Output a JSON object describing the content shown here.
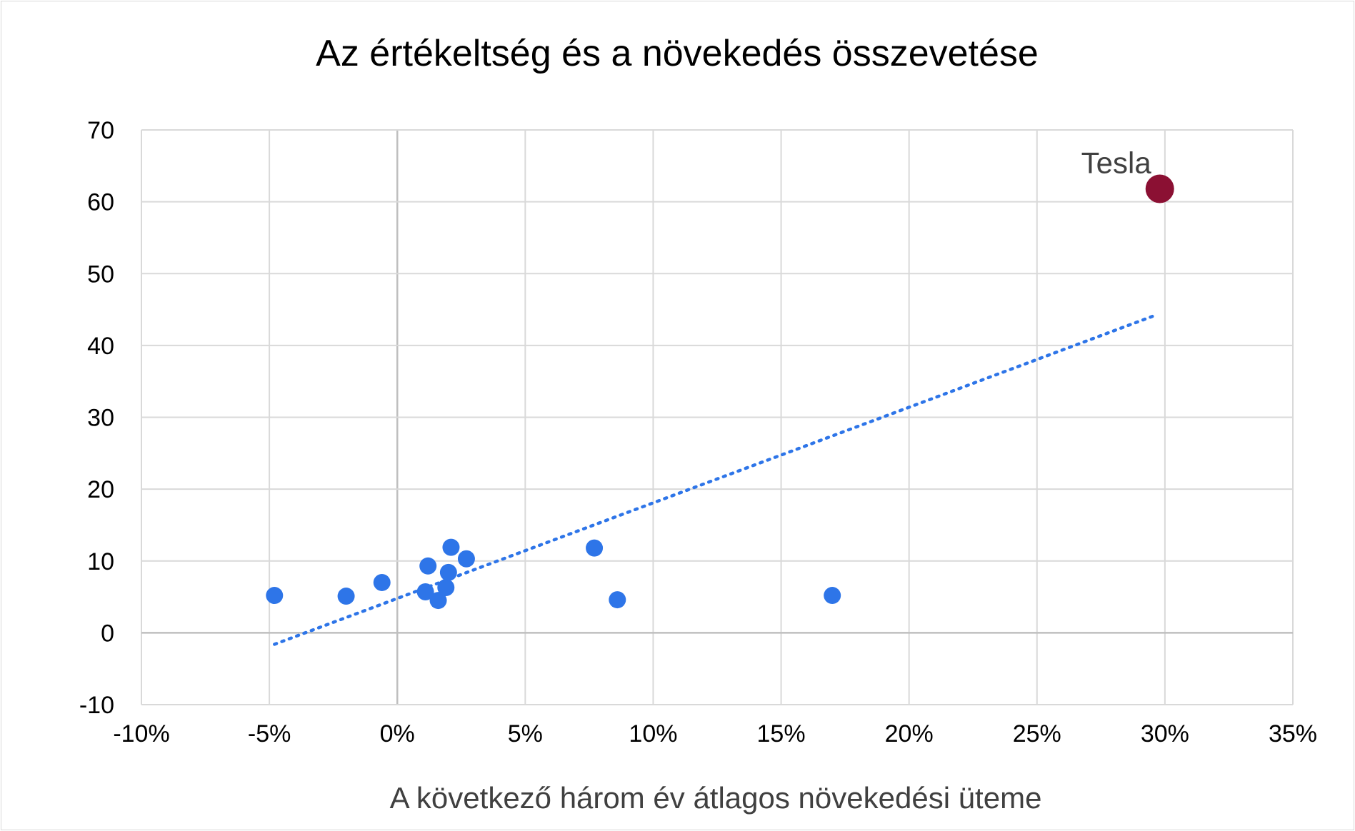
{
  "chart_data": {
    "type": "scatter",
    "title": "Az értékeltség és a növekedés összevetése",
    "xlabel": "A következő három év átlagos növekedési üteme",
    "ylabel": "",
    "xlim": [
      -0.1,
      0.35
    ],
    "ylim": [
      -10,
      70
    ],
    "x_ticks": [
      -0.1,
      -0.05,
      0.0,
      0.05,
      0.1,
      0.15,
      0.2,
      0.25,
      0.3,
      0.35
    ],
    "x_tick_labels": [
      "-10%",
      "-5%",
      "0%",
      "5%",
      "10%",
      "15%",
      "20%",
      "25%",
      "30%",
      "35%"
    ],
    "y_ticks": [
      -10,
      0,
      10,
      20,
      30,
      40,
      50,
      60,
      70
    ],
    "y_tick_labels": [
      "-10",
      "0",
      "10",
      "20",
      "30",
      "40",
      "50",
      "60",
      "70"
    ],
    "grid": true,
    "series": [
      {
        "color": "#2e75e8",
        "points": [
          {
            "x": -0.048,
            "y": 5.2
          },
          {
            "x": -0.02,
            "y": 5.1
          },
          {
            "x": -0.006,
            "y": 7.0
          },
          {
            "x": 0.012,
            "y": 9.3
          },
          {
            "x": 0.011,
            "y": 5.7
          },
          {
            "x": 0.016,
            "y": 4.5
          },
          {
            "x": 0.019,
            "y": 6.3
          },
          {
            "x": 0.02,
            "y": 8.4
          },
          {
            "x": 0.021,
            "y": 11.9
          },
          {
            "x": 0.027,
            "y": 10.3
          },
          {
            "x": 0.077,
            "y": 11.8
          },
          {
            "x": 0.086,
            "y": 4.6
          },
          {
            "x": 0.17,
            "y": 5.2
          }
        ]
      },
      {
        "color": "#8b1033",
        "points": [
          {
            "x": 0.298,
            "y": 61.8
          }
        ]
      }
    ],
    "trendline": {
      "style": "dotted",
      "color": "#2e75e8",
      "start": {
        "x": -0.048,
        "y": -1.6
      },
      "end": {
        "x": 0.297,
        "y": 44.3
      }
    },
    "annotations": [
      {
        "text": "Tesla",
        "x": 0.298,
        "y": 61.8
      }
    ]
  }
}
